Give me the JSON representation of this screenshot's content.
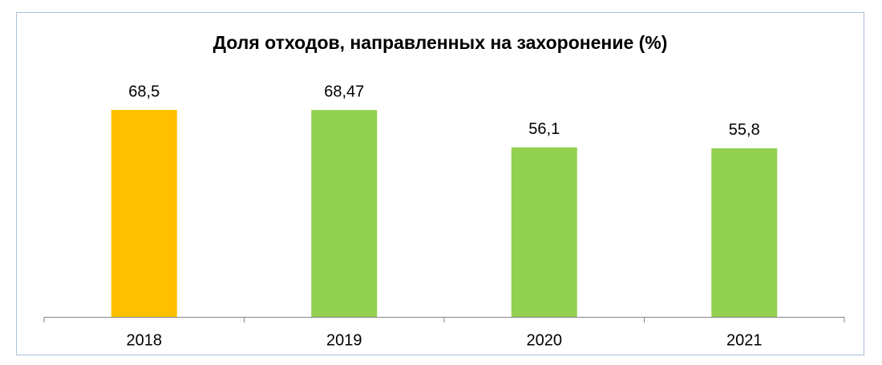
{
  "chart_data": {
    "type": "bar",
    "title": "Доля отходов, направленных на захоронение (%)",
    "categories": [
      "2018",
      "2019",
      "2020",
      "2021"
    ],
    "values": [
      68.5,
      68.47,
      56.1,
      55.8
    ],
    "value_labels": [
      "68,5",
      "68,47",
      "56,1",
      "55,8"
    ],
    "colors": [
      "#ffc000",
      "#92d050",
      "#92d050",
      "#92d050"
    ]
  }
}
